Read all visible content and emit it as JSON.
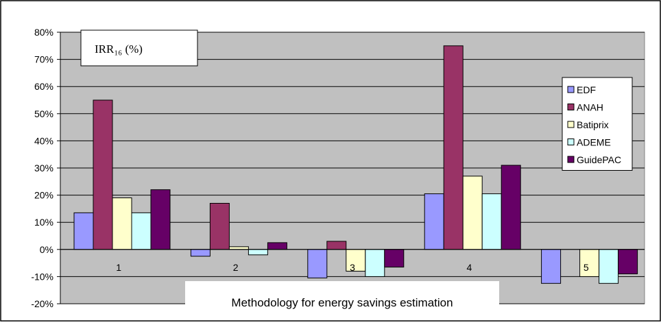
{
  "chart_data": {
    "type": "bar",
    "title": "IRR₁₆ (%)",
    "xlabel": "Methodology for energy savings estimation",
    "ylabel": "",
    "categories": [
      "1",
      "2",
      "3",
      "4",
      "5"
    ],
    "series": [
      {
        "name": "EDF",
        "color": "#9999ff",
        "values": [
          13.5,
          -2.5,
          -10.5,
          20.5,
          -12.5
        ]
      },
      {
        "name": "ANAH",
        "color": "#993366",
        "values": [
          55,
          17,
          3,
          75,
          0
        ]
      },
      {
        "name": "Batiprix",
        "color": "#ffffcc",
        "values": [
          19,
          1,
          -8,
          27,
          -10
        ]
      },
      {
        "name": "ADEME",
        "color": "#ccffff",
        "values": [
          13.5,
          -2,
          -10,
          20.5,
          -12.5
        ]
      },
      {
        "name": "GuidePAC",
        "color": "#660066",
        "values": [
          22,
          2.5,
          -6.5,
          31,
          -9
        ]
      }
    ],
    "ylim": [
      -20,
      80
    ],
    "yticks": [
      -20,
      -10,
      0,
      10,
      20,
      30,
      40,
      50,
      60,
      70,
      80
    ],
    "ytick_format": "percent",
    "grid": true,
    "legend": "right",
    "plot_background": "#c0c0c0"
  }
}
